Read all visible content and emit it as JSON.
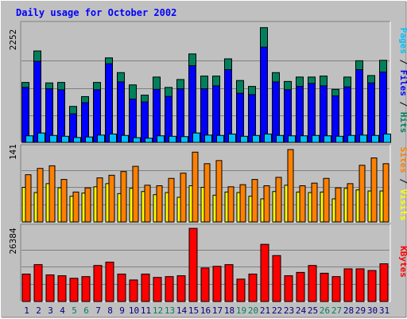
{
  "title": "Daily usage for October 2002",
  "colors": {
    "background": "#c0c0c0",
    "title": "#0000ff",
    "hits": "#00805c",
    "files": "#0000ff",
    "pages": "#00c0ff",
    "visits": "#ffff00",
    "sites": "#ff8000",
    "kbytes": "#ff0000",
    "weekend_label": "#00805c",
    "weekday_label": "#000080"
  },
  "chart_data": [
    {
      "type": "bar",
      "panel": "hits-files-pages",
      "ymax_label": "2252",
      "ylim": [
        0,
        2252
      ],
      "legend": {
        "pages": "Pages",
        "files": "Files",
        "hits": "Hits",
        "separator": " / "
      },
      "categories": [
        "1",
        "2",
        "3",
        "4",
        "5",
        "6",
        "7",
        "8",
        "9",
        "10",
        "11",
        "12",
        "13",
        "14",
        "15",
        "16",
        "17",
        "18",
        "19",
        "20",
        "21",
        "22",
        "23",
        "24",
        "25",
        "26",
        "27",
        "28",
        "29",
        "30",
        "31"
      ],
      "weekend_days": [
        5,
        6,
        12,
        13,
        19,
        20,
        26,
        27
      ],
      "series": [
        {
          "name": "Hits",
          "values": [
            1147,
            1749,
            1138,
            1147,
            689,
            876,
            1147,
            1617,
            1335,
            1100,
            904,
            1250,
            1052,
            1203,
            1692,
            1269,
            1269,
            1598,
            1184,
            1071,
            2195,
            1335,
            1166,
            1250,
            1250,
            1269,
            1015,
            1250,
            1562,
            1279,
            1570
          ]
        },
        {
          "name": "Files",
          "values": [
            1052,
            1551,
            1026,
            1007,
            546,
            760,
            1007,
            1504,
            1157,
            828,
            774,
            1015,
            879,
            1026,
            1466,
            1026,
            1082,
            1391,
            940,
            914,
            1822,
            1157,
            1007,
            1071,
            1128,
            1082,
            889,
            1062,
            1391,
            1138,
            1344
          ]
        },
        {
          "name": "Pages",
          "values": [
            126,
            180,
            133,
            117,
            94,
            104,
            140,
            160,
            133,
            90,
            80,
            126,
            117,
            111,
            180,
            140,
            133,
            160,
            117,
            133,
            160,
            133,
            126,
            126,
            133,
            126,
            117,
            133,
            140,
            133,
            160
          ]
        }
      ]
    },
    {
      "type": "bar",
      "panel": "sites-visits",
      "ymax_label": "141",
      "ylim": [
        0,
        141
      ],
      "legend": {
        "sites": "Sites",
        "visits": "Visits",
        "separator": " / "
      },
      "categories": [
        "1",
        "2",
        "3",
        "4",
        "5",
        "6",
        "7",
        "8",
        "9",
        "10",
        "11",
        "12",
        "13",
        "14",
        "15",
        "16",
        "17",
        "18",
        "19",
        "20",
        "21",
        "22",
        "23",
        "24",
        "25",
        "26",
        "27",
        "28",
        "29",
        "30",
        "31"
      ],
      "weekend_days": [
        5,
        6,
        12,
        13,
        19,
        20,
        26,
        27
      ],
      "series": [
        {
          "name": "Sites",
          "values": [
            90,
            102,
            107,
            81,
            57,
            65,
            84,
            89,
            96,
            106,
            70,
            69,
            83,
            93,
            133,
            111,
            117,
            67,
            71,
            81,
            69,
            85,
            138,
            69,
            74,
            83,
            65,
            73,
            108,
            122,
            111
          ]
        },
        {
          "name": "Visits",
          "values": [
            66,
            56,
            73,
            65,
            49,
            55,
            67,
            73,
            54,
            64,
            58,
            52,
            56,
            47,
            69,
            66,
            51,
            57,
            56,
            49,
            44,
            58,
            70,
            57,
            56,
            57,
            44,
            64,
            61,
            59,
            59
          ]
        }
      ]
    },
    {
      "type": "bar",
      "panel": "kbytes",
      "ymax_label": "26384",
      "ylim": [
        0,
        26384
      ],
      "legend": {
        "kbytes": "KBytes"
      },
      "categories": [
        "1",
        "2",
        "3",
        "4",
        "5",
        "6",
        "7",
        "8",
        "9",
        "10",
        "11",
        "12",
        "13",
        "14",
        "15",
        "16",
        "17",
        "18",
        "19",
        "20",
        "21",
        "22",
        "23",
        "24",
        "25",
        "26",
        "27",
        "28",
        "29",
        "30",
        "31"
      ],
      "weekend_days": [
        5,
        6,
        12,
        13,
        19,
        20,
        26,
        27
      ],
      "series": [
        {
          "name": "KBytes",
          "values": [
            9786,
            13152,
            9486,
            9186,
            8286,
            8886,
            12852,
            14052,
            9786,
            7686,
            9786,
            8586,
            8886,
            9186,
            26084,
            11952,
            12552,
            13152,
            7986,
            9786,
            20384,
            16384,
            9186,
            10386,
            12852,
            10086,
            8886,
            11652,
            11652,
            11052,
            13452
          ]
        }
      ]
    }
  ]
}
